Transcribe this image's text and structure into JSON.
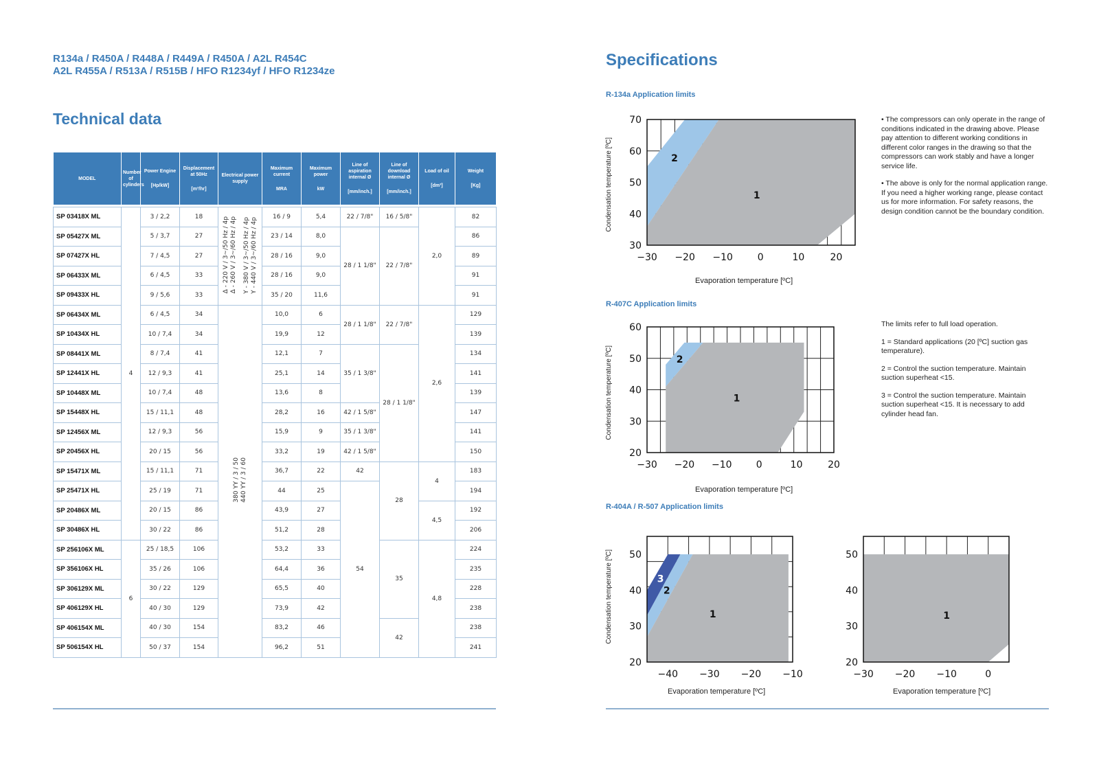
{
  "header": {
    "refrigerants_line1": "R134a / R450A / R448A / R449A / R450A / A2L R454C",
    "refrigerants_line2": "A2L R455A / R513A / R515B / HFO R1234yf / HFO R1234ze",
    "technical_title": "Technical data",
    "specifications_title": "Specifications"
  },
  "table": {
    "headers": [
      {
        "label": "MODEL",
        "unit": ""
      },
      {
        "label": "Number of cylinders",
        "unit": ""
      },
      {
        "label": "Power Engine",
        "unit": "[Hp/kW]"
      },
      {
        "label": "Displacement at 50Hz",
        "unit": "[m³/hr]"
      },
      {
        "label": "Electrical power supply",
        "unit": ""
      },
      {
        "label": "Maximum current",
        "unit": "MRA"
      },
      {
        "label": "Maximum power",
        "unit": "kW"
      },
      {
        "label": "Line of aspiration internal Ø",
        "unit": "[mm/inch.]"
      },
      {
        "label": "Line of download internal Ø",
        "unit": "[mm/inch.]"
      },
      {
        "label": "Load of oil",
        "unit": "[dm³]"
      },
      {
        "label": "Weight",
        "unit": "[Kg]"
      }
    ],
    "rows": [
      {
        "model": "SP 03418X ML",
        "power": "3 / 2,2",
        "disp": "18",
        "current": "16 / 9",
        "kw": "5,4",
        "weight": "82"
      },
      {
        "model": "SP 05427X ML",
        "power": "5 / 3,7",
        "disp": "27",
        "current": "23 / 14",
        "kw": "8,0",
        "weight": "86"
      },
      {
        "model": "SP 07427X HL",
        "power": "7 / 4,5",
        "disp": "27",
        "current": "28 / 16",
        "kw": "9,0",
        "weight": "89"
      },
      {
        "model": "SP 06433X ML",
        "power": "6 / 4,5",
        "disp": "33",
        "current": "28 / 16",
        "kw": "9,0",
        "weight": "91"
      },
      {
        "model": "SP 09433X HL",
        "power": "9 / 5,6",
        "disp": "33",
        "current": "35 / 20",
        "kw": "11,6",
        "weight": "91"
      },
      {
        "model": "SP 06434X ML",
        "power": "6 / 4,5",
        "disp": "34",
        "current": "10,0",
        "kw": "6",
        "weight": "129"
      },
      {
        "model": "SP 10434X HL",
        "power": "10 / 7,4",
        "disp": "34",
        "current": "19,9",
        "kw": "12",
        "weight": "139"
      },
      {
        "model": "SP 08441X ML",
        "power": "8 / 7,4",
        "disp": "41",
        "current": "12,1",
        "kw": "7",
        "weight": "134"
      },
      {
        "model": "SP 12441X HL",
        "power": "12 / 9,3",
        "disp": "41",
        "current": "25,1",
        "kw": "14",
        "weight": "141"
      },
      {
        "model": "SP 10448X ML",
        "power": "10 / 7,4",
        "disp": "48",
        "current": "13,6",
        "kw": "8",
        "weight": "139"
      },
      {
        "model": "SP 15448X HL",
        "power": "15 / 11,1",
        "disp": "48",
        "current": "28,2",
        "kw": "16",
        "weight": "147"
      },
      {
        "model": "SP 12456X ML",
        "power": "12 / 9,3",
        "disp": "56",
        "current": "15,9",
        "kw": "9",
        "weight": "141"
      },
      {
        "model": "SP 20456X HL",
        "power": "20 / 15",
        "disp": "56",
        "current": "33,2",
        "kw": "19",
        "weight": "150"
      },
      {
        "model": "SP 15471X ML",
        "power": "15 / 11,1",
        "disp": "71",
        "current": "36,7",
        "kw": "22",
        "weight": "183"
      },
      {
        "model": "SP 25471X HL",
        "power": "25 / 19",
        "disp": "71",
        "current": "44",
        "kw": "25",
        "weight": "194"
      },
      {
        "model": "SP 20486X ML",
        "power": "20 / 15",
        "disp": "86",
        "current": "43,9",
        "kw": "27",
        "weight": "192"
      },
      {
        "model": "SP 30486X HL",
        "power": "30 / 22",
        "disp": "86",
        "current": "51,2",
        "kw": "28",
        "weight": "206"
      },
      {
        "model": "SP 256106X ML",
        "power": "25 / 18,5",
        "disp": "106",
        "current": "53,2",
        "kw": "33",
        "weight": "224"
      },
      {
        "model": "SP 356106X HL",
        "power": "35 / 26",
        "disp": "106",
        "current": "64,4",
        "kw": "36",
        "weight": "235"
      },
      {
        "model": "SP 306129X ML",
        "power": "30 / 22",
        "disp": "129",
        "current": "65,5",
        "kw": "40",
        "weight": "228"
      },
      {
        "model": "SP 406129X HL",
        "power": "40 / 30",
        "disp": "129",
        "current": "73,9",
        "kw": "42",
        "weight": "238"
      },
      {
        "model": "SP 406154X ML",
        "power": "40 / 30",
        "disp": "154",
        "current": "83,2",
        "kw": "46",
        "weight": "238"
      },
      {
        "model": "SP 506154X HL",
        "power": "50 / 37",
        "disp": "154",
        "current": "96,2",
        "kw": "51",
        "weight": "241"
      }
    ],
    "merged": {
      "cyl_4": "4",
      "cyl_6": "6",
      "elec_a1": "Δ - 220 V / 3~/50 Hz / 4p\nΔ - 260 V / 3~/60 Hz / 4p",
      "elec_a2": "Y - 380 V / 3~/50 Hz / 4p\nY - 440 V / 3~/60 Hz / 4p",
      "elec_b": "380 YY / 3 / 50\n440 YY / 3 / 60",
      "asp_1": "22 / 7/8\"",
      "asp_2": "28 / 1 1/8\"",
      "asp_3": "28 / 1 1/8\"",
      "asp_4": "35 / 1 3/8\"",
      "asp_5": "42 / 1 5/8\"",
      "asp_6": "35 / 1 3/8\"",
      "asp_7": "42 / 1 5/8\"",
      "asp_8": "42",
      "asp_9": "54",
      "dis_1": "16 / 5/8\"",
      "dis_2": "22 / 7/8\"",
      "dis_3": "22 / 7/8\"",
      "dis_4": "28 / 1 1/8\"",
      "dis_5": "28",
      "dis_6": "35",
      "dis_7": "42",
      "oil_1": "2,0",
      "oil_2": "2,6",
      "oil_3": "4",
      "oil_4": "4,5",
      "oil_5": "4,8"
    }
  },
  "chart_data": [
    {
      "type": "area",
      "title": "R-134a Application limits",
      "xlabel": "Evaporation temperature [ºC]",
      "ylabel": "Condensation temperature [ºC]",
      "xlim": [
        -30,
        25
      ],
      "ylim": [
        30,
        70
      ],
      "xticks": [
        "−30",
        "−20",
        "−10",
        "0",
        "10",
        "20"
      ],
      "yticks": [
        "30",
        "40",
        "50",
        "60",
        "70"
      ],
      "grid": true,
      "regions": [
        {
          "name": "2",
          "color": "#9ec6e8",
          "polygon": [
            [
              -30,
              55
            ],
            [
              -20,
              70
            ],
            [
              -11,
              70
            ],
            [
              -30,
              36
            ]
          ]
        },
        {
          "name": "1",
          "color": "#b5b7ba",
          "polygon": [
            [
              -30,
              36
            ],
            [
              -11,
              70
            ],
            [
              25,
              70
            ],
            [
              25,
              40
            ],
            [
              15,
              30
            ],
            [
              -30,
              30
            ]
          ]
        }
      ]
    },
    {
      "type": "area",
      "title": "R-407C Application limits",
      "xlabel": "Evaporation temperature [ºC]",
      "ylabel": "Condensation temperature [ºC]",
      "xlim": [
        -30,
        20
      ],
      "ylim": [
        20,
        60
      ],
      "xticks": [
        "−30",
        "−20",
        "−10",
        "0",
        "10",
        "20"
      ],
      "yticks": [
        "20",
        "30",
        "40",
        "50",
        "60"
      ],
      "grid": true,
      "regions": [
        {
          "name": "2",
          "color": "#9ec6e8",
          "polygon": [
            [
              -25,
              48
            ],
            [
              -20,
              55
            ],
            [
              -15,
              55
            ],
            [
              -25,
              41
            ]
          ]
        },
        {
          "name": "1",
          "color": "#b5b7ba",
          "polygon": [
            [
              -25,
              41
            ],
            [
              -15,
              55
            ],
            [
              12,
              55
            ],
            [
              12,
              33
            ],
            [
              5,
              20
            ],
            [
              -25,
              20
            ]
          ]
        }
      ]
    },
    {
      "type": "area",
      "title": "R-404A / R-507 Application limits",
      "xlabel": "Evaporation temperature [ºC]",
      "ylabel": "Condensation temperature [ºC]",
      "xlim": [
        -45,
        -10
      ],
      "ylim": [
        20,
        55
      ],
      "xticks": [
        "−40",
        "−30",
        "−20",
        "−10"
      ],
      "yticks": [
        "20",
        "30",
        "40",
        "50"
      ],
      "grid": true,
      "regions": [
        {
          "name": "3",
          "color": "#3f59a6",
          "polygon": [
            [
              -45,
              40
            ],
            [
              -40,
              50
            ],
            [
              -37,
              50
            ],
            [
              -45,
              33
            ]
          ]
        },
        {
          "name": "2",
          "color": "#9ec6e8",
          "polygon": [
            [
              -45,
              33
            ],
            [
              -37,
              50
            ],
            [
              -34,
              50
            ],
            [
              -45,
              27
            ]
          ]
        },
        {
          "name": "1",
          "color": "#b5b7ba",
          "polygon": [
            [
              -45,
              27
            ],
            [
              -34,
              50
            ],
            [
              -11,
              50
            ],
            [
              -11,
              20
            ],
            [
              -45,
              20
            ]
          ]
        }
      ]
    },
    {
      "type": "area",
      "title": "",
      "xlabel": "Evaporation temperature [ºC]",
      "ylabel": "",
      "xlim": [
        -30,
        5
      ],
      "ylim": [
        20,
        55
      ],
      "xticks": [
        "−30",
        "−20",
        "−10",
        "0"
      ],
      "yticks": [
        "20",
        "30",
        "40",
        "50"
      ],
      "grid": true,
      "regions": [
        {
          "name": "1",
          "color": "#b5b7ba",
          "polygon": [
            [
              -30,
              50
            ],
            [
              5,
              50
            ],
            [
              5,
              25
            ],
            [
              0,
              20
            ],
            [
              -30,
              20
            ]
          ]
        }
      ]
    }
  ],
  "notes": {
    "r134a": [
      "• The compressors can only operate in the range of conditions indicated in the drawing above. Please pay attention to different working conditions in different color ranges in the drawing so that the compressors can work stably and have a longer service life.",
      "• The above is only for the normal application range. If you need a higher working range, please contact us for more information. For safety reasons, the design condition cannot be the boundary condition."
    ],
    "r407c": [
      "The limits refer to full load operation.",
      "1 = Standard applications (20 [ºC] suction gas temperature).",
      "2 = Control the suction temperature. Maintain suction superheat <15.",
      "3 = Control the suction temperature. Maintain suction superheat <15. It is necessary to add cylinder head fan."
    ]
  },
  "colors": {
    "accent": "#3d7db8",
    "region1": "#b5b7ba",
    "region2": "#9ec6e8",
    "region3": "#3f59a6"
  }
}
